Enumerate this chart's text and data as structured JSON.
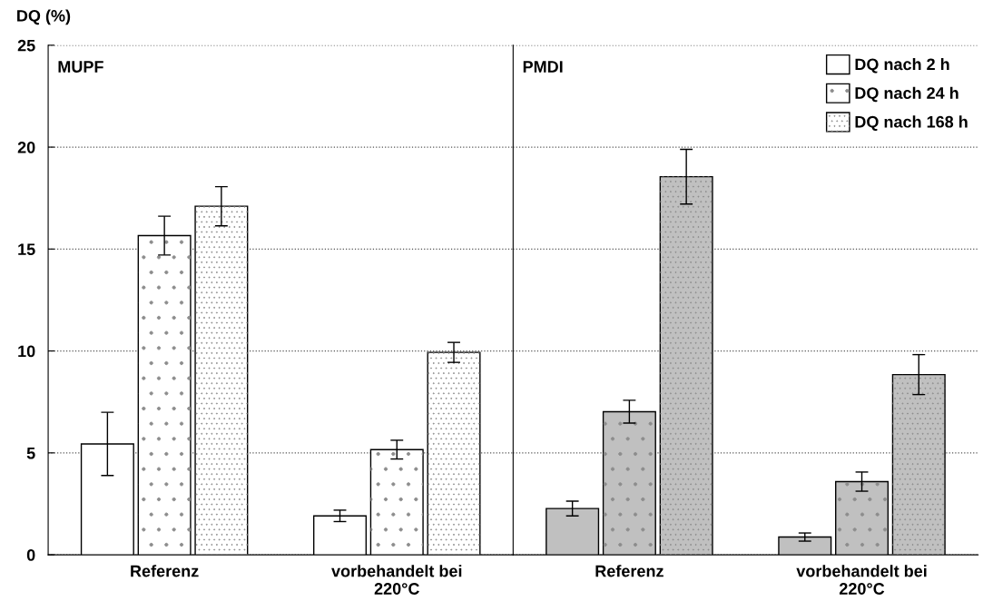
{
  "chart_data": [
    {
      "type": "bar",
      "ylabel": "DQ (%)",
      "categories": [
        "Referenz",
        "vorbehandelt bei\n220°C"
      ],
      "ylim": [
        0,
        25
      ],
      "yticks": [
        0,
        5,
        10,
        15,
        20,
        25
      ],
      "grid": "y",
      "legend": "top right",
      "annotations": [
        "MUPF"
      ],
      "series": [
        {
          "name": "DQ nach 2 h",
          "color": "#ffffff",
          "values": [
            5.44,
            1.91
          ],
          "errors": [
            1.55,
            0.28
          ]
        },
        {
          "name": "DQ nach 24 h",
          "color": "#ffffff",
          "values": [
            15.66,
            5.16
          ],
          "errors": [
            0.95,
            0.46
          ]
        },
        {
          "name": "DQ nach 168 h",
          "color": "#ffffff",
          "values": [
            17.1,
            9.93
          ],
          "errors": [
            0.96,
            0.49
          ]
        }
      ]
    },
    {
      "type": "bar",
      "categories": [
        "Referenz",
        "vorbehandelt bei\n220°C"
      ],
      "ylim": [
        0,
        25
      ],
      "yticks": [
        0,
        5,
        10,
        15,
        20,
        25
      ],
      "tick_labels": "x",
      "grid": "y",
      "annotations": [
        "PMDI"
      ],
      "series": [
        {
          "color": "#c0c0c0",
          "values": [
            2.27,
            0.87
          ],
          "errors": [
            0.36,
            0.2
          ]
        },
        {
          "color": "#c0c0c0",
          "values": [
            7.02,
            3.59
          ],
          "errors": [
            0.56,
            0.47
          ]
        },
        {
          "color": "#c0c0c0",
          "values": [
            18.55,
            8.84
          ],
          "errors": [
            1.34,
            0.98
          ]
        }
      ]
    }
  ]
}
